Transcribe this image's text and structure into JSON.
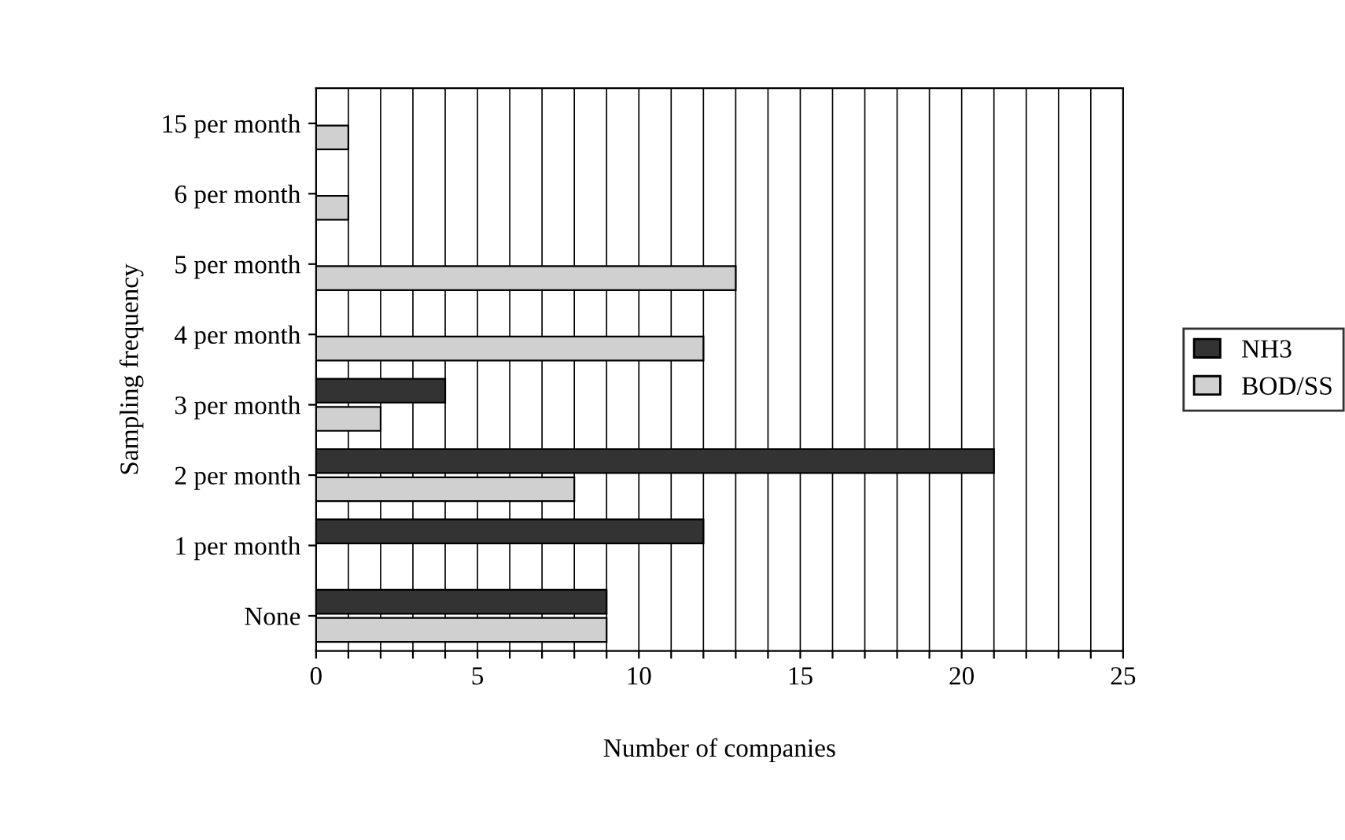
{
  "chart_data": {
    "type": "bar",
    "orientation": "horizontal",
    "categories": [
      "15 per month",
      "6 per month",
      "5 per month",
      "4 per month",
      "3 per month",
      "2 per month",
      "1 per month",
      "None"
    ],
    "series": [
      {
        "name": "NH3",
        "color": "#333333",
        "values": [
          0,
          0,
          0,
          0,
          4,
          21,
          12,
          9
        ]
      },
      {
        "name": "BOD/SS",
        "color": "#d0d0d0",
        "values": [
          1,
          1,
          13,
          12,
          2,
          8,
          0,
          9
        ]
      }
    ],
    "xlabel": "Number of companies",
    "ylabel": "Sampling frequency",
    "xlim": [
      0,
      25
    ],
    "xticks": [
      0,
      {
        "value": 1,
        "label": null
      },
      {
        "value": 2,
        "label": null
      },
      {
        "value": 3,
        "label": null
      },
      {
        "value": 4,
        "label": null
      },
      5,
      {
        "value": 6,
        "label": null
      },
      {
        "value": 7,
        "label": null
      },
      {
        "value": 8,
        "label": null
      },
      {
        "value": 9,
        "label": null
      },
      10,
      {
        "value": 11,
        "label": null
      },
      {
        "value": 12,
        "label": null
      },
      {
        "value": 13,
        "label": null
      },
      {
        "value": 14,
        "label": null
      },
      15,
      {
        "value": 16,
        "label": null
      },
      {
        "value": 17,
        "label": null
      },
      {
        "value": 18,
        "label": null
      },
      {
        "value": 19,
        "label": null
      },
      20,
      {
        "value": 21,
        "label": null
      },
      {
        "value": 22,
        "label": null
      },
      {
        "value": 23,
        "label": null
      },
      {
        "value": 24,
        "label": null
      },
      25
    ],
    "grid": "x",
    "legend": "right"
  }
}
